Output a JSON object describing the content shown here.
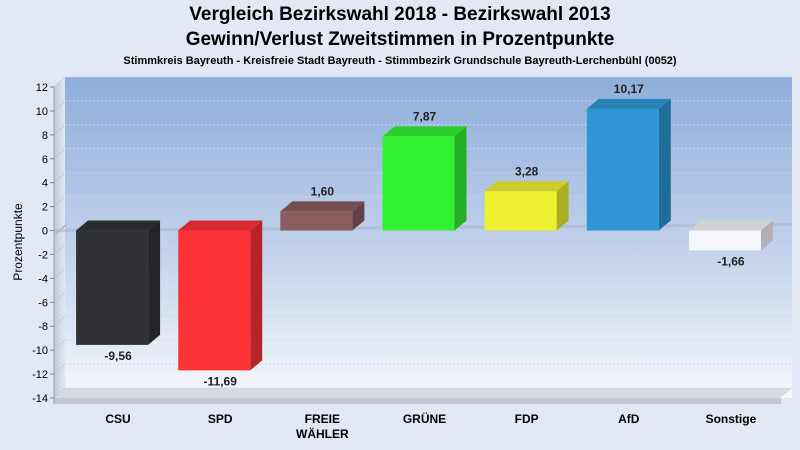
{
  "header": {
    "title_line1": "Vergleich Bezirkswahl 2018 - Bezirkswahl 2013",
    "title_line2": "Gewinn/Verlust Zweitstimmen in Prozentpunkte",
    "subtitle": "Stimmkreis Bayreuth - Kreisfreie Stadt Bayreuth - Stimmbezirk Grundschule Bayreuth-Lerchenbühl (0052)"
  },
  "chart_data": {
    "type": "bar",
    "ylabel": "Prozentpunkte",
    "xlabel": "",
    "ylim": [
      -14,
      12
    ],
    "yticks": [
      "12",
      "10",
      "8",
      "6",
      "4",
      "2",
      "0",
      "-2",
      "-4",
      "-6",
      "-8",
      "-10",
      "-12",
      "-14"
    ],
    "grid": true,
    "categories": [
      "CSU",
      "SPD",
      "FREIE WÄHLER",
      "GRÜNE",
      "FDP",
      "AfD",
      "Sonstige"
    ],
    "category_lines": [
      [
        "CSU"
      ],
      [
        "SPD"
      ],
      [
        "FREIE",
        "WÄHLER"
      ],
      [
        "GRÜNE"
      ],
      [
        "FDP"
      ],
      [
        "AfD"
      ],
      [
        "Sonstige"
      ]
    ],
    "values": [
      -9.56,
      -11.69,
      1.6,
      7.87,
      3.28,
      10.17,
      -1.66
    ],
    "value_labels": [
      "-9,56",
      "-11,69",
      "1,60",
      "7,87",
      "3,28",
      "10,17",
      "-1,66"
    ],
    "colors": [
      "#303236",
      "#fb3336",
      "#8a5c60",
      "#33f233",
      "#f0f032",
      "#2f96d6",
      "#f4f6fb"
    ]
  }
}
